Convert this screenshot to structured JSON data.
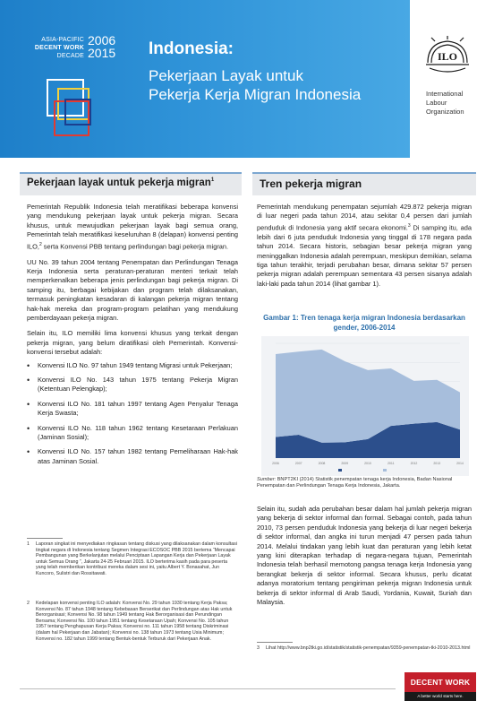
{
  "header": {
    "program_line1": "ASIA-PACIFIC",
    "program_line2": "DECENT WORK",
    "program_line3": "DECADE",
    "year_start": "2006",
    "year_end": "2015",
    "title": "Indonesia:",
    "subtitle_line1": "Pekerjaan Layak untuk",
    "subtitle_line2": "Pekerja Kerja Migran Indonesia",
    "logo_text": "ILO",
    "org_line1": "International",
    "org_line2": "Labour",
    "org_line3": "Organization",
    "colors": {
      "blue": "#2f93d8",
      "yellow": "#f4d13d",
      "red": "#e23b32",
      "navy": "#1b3f8f"
    }
  },
  "left_section": {
    "heading": "Pekerjaan layak untuk pekerja migran",
    "heading_note": "1",
    "paragraphs": [
      "Pemerintah Republik Indonesia telah meratifikasi beberapa konvensi yang mendukung pekerjaan layak untuk pekerja migran. Secara khusus, untuk mewujudkan pekerjaan layak bagi semua orang, Pemerintah telah meratifikasi keseluruhan 8 (delapan) konvensi penting ILO,",
      "UU No. 39 tahun 2004 tentang Penempatan dan Perlindungan Tenaga Kerja Indonesia serta peraturan-peraturan menteri terkait telah memperkenalkan beberapa jenis perlindungan bagi pekerja migran. Di samping itu, berbagai kebijakan dan program telah dilaksanakan, termasuk peningkatan kesadaran di kalangan pekerja migran tentang hak-hak mereka dan program-program pelatihan yang mendukung pemberdayaan pekerja migran.",
      "Selain itu, ILO memiliki lima konvensi khusus yang terkait dengan pekerja migran, yang belum diratifikasi oleh Pemerintah. Konvensi-konvensi tersebut adalah:"
    ],
    "para1_note": "2",
    "para1_tail": " serta Konvensi PBB tentang perlindungan bagi pekerja migran.",
    "conventions": [
      "Konvensi ILO No. 97 tahun 1949 tentang Migrasi untuk Pekerjaan;",
      "Konvensi ILO No. 143 tahun 1975 tentang Pekerja Migran (Ketentuan Pelengkap);",
      "Konvensi ILO No. 181 tahun 1997 tentang Agen Penyalur Tenaga Kerja Swasta;",
      "Konvensi ILO No. 118 tahun 1962 tentang Kesetaraan Perlakuan (Jaminan Sosial);",
      "Konvensi ILO No. 157 tahun 1982 tentang Pemeliharaan Hak-hak atas Jaminan Sosial."
    ]
  },
  "right_section": {
    "heading": "Tren pekerja migran",
    "paragraph1": "Pemerintah mendukung penempatan sejumlah 429.872 pekerja migran di luar negeri pada tahun 2014, atau sekitar 0,4 persen dari jumlah penduduk di Indonesia yang aktif secara ekonomi.",
    "paragraph1_note": "3",
    "paragraph1_tail": " Di samping itu, ada lebih dari 6 juta penduduk Indonesia yang tinggal di 178 negara pada tahun 2014. Secara historis, sebagian besar pekerja migran yang meninggalkan Indonesia adalah perempuan, meskipun demikian, selama tiga tahun terakhir, terjadi perubahan besar, dimana sekitar 57 persen pekerja migran adalah perempuan sementara 43 persen sisanya adalah laki-laki pada tahun 2014 (lihat gambar 1).",
    "chart_caption": "Gambar 1: Tren tenaga kerja migran Indonesia berdasarkan gender, 2006-2014",
    "chart_source_label": "Sumber:",
    "chart_source": "BNPT2KI (2014) Statistik penempatan tenaga kerja Indonesia, Badan Nasional Penempatan dan Perlindungan Tenaga Kerja Indonesia, Jakarta.",
    "paragraph2": "Selain itu, sudah ada perubahan besar dalam hal jumlah pekerja migran yang bekerja di sektor informal dan formal. Sebagai contoh, pada tahun 2010, 73 persen penduduk Indonesia yang bekerja di luar negeri bekerja di sektor informal, dan angka ini turun menjadi 47 persen pada tahun 2014. Melalui tindakan yang lebih kuat dan peraturan yang lebih ketat yang kini diterapkan terhadap di negara-negara tujuan, Pemerintah Indonesia telah berhasil memotong pangsa tenaga kerja Indonesia yang berangkat bekerja di sektor informal. Secara khusus, perlu dicatat adanya moratorium tentang pengiriman pekerja migran Indonesia untuk bekerja di sektor informal di Arab Saudi, Yordania, Kuwait, Suriah dan Malaysia."
  },
  "chart_data": {
    "type": "area",
    "x": [
      "2006",
      "2007",
      "2008",
      "2009",
      "2010",
      "2011",
      "2012",
      "2013",
      "2014"
    ],
    "series": [
      {
        "name": "",
        "values": [
          138000,
          152000,
          101000,
          103000,
          124000,
          210000,
          225000,
          235000,
          186000
        ]
      },
      {
        "name": "",
        "values": [
          542000,
          544000,
          609000,
          530000,
          451000,
          376000,
          280000,
          276000,
          244000
        ]
      }
    ],
    "colors": [
      "#2c4f8c",
      "#a7bedc"
    ],
    "legend": "bottom",
    "grid": true
  },
  "footnotes": {
    "left": [
      {
        "num": "1",
        "text": "Laporan singkat ini menyediakan ringkasan tentang diskusi yang dilaksanakan dalam konsultasi tingkat negara di Indonesia tentang Segmen Integrasi ECOSOC PBB 2015 bertema “Mencapai Pembangunan yang Berkelanjutan melalui Penciptaan Lapangan Kerja dan Pekerjaan Layak untuk Semua Orang ”, Jakarta 24-25 Februari 2015. ILO berterima kasih pada para peserta yang telah memberikan kontribusi mereka dalam sesi ini, yaitu Albert Y. Bonasahat, Jun Kuncoro, Sulistri dan Rossitawati."
      },
      {
        "num": "2",
        "text": "Kedelapan konvensi penting ILO adalah: Konvensi No. 29 tahun 1930 tentang Kerja Paksa; Konvensi No. 87 tahun 1948 tentang Kebebasan Berserikat dan Perlindungan atas Hak untuk Berorganisasi; Konvensi No. 98 tahun 1949 tentang Hak Berorganisasi dan Perundingan Bersama; Konvensi No. 100 tahun 1951 tentang Kesetaraan Upah; Konvensi No. 105 tahun 1957 tentang Penghapusan Kerja Paksa; Konvensi no. 111 tahun 1958 tentang Diskriminasi (dalam hal Pekerjaan dan Jabatan); Konvensi no. 138 tahun 1973 tentang Usia Minimum; Konvensi no. 182 tahun 1999 tentang Bentuk-bentuk Terburuk dari Pekerjaan Anak."
      }
    ],
    "right": [
      {
        "num": "3",
        "text": "Lihat http://www.bnp2tki.go.id/statistik/statistik-penempatan/9359-penempatan-tki-2010-2013.html"
      }
    ]
  },
  "badge": {
    "title": "DECENT WORK",
    "tagline": "A better world starts here."
  }
}
